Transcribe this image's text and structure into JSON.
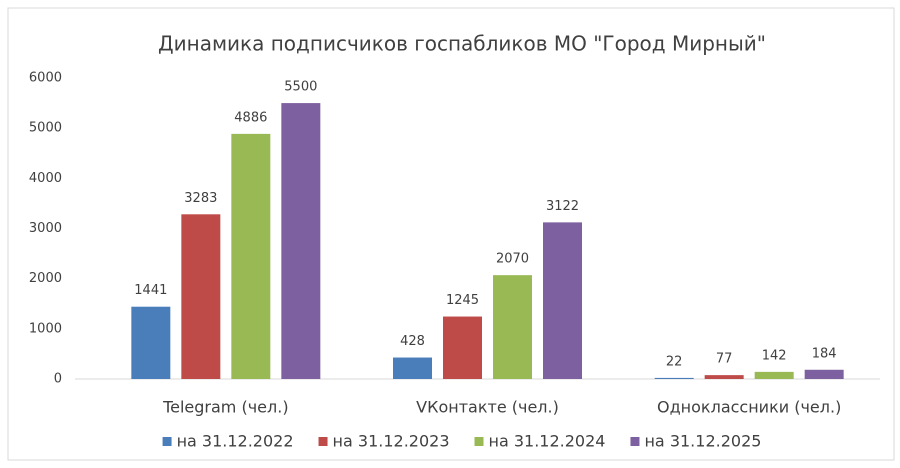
{
  "chart_data": {
    "type": "bar",
    "title": "Динамика подписчиков госпабликов МО \"Город Мирный\"",
    "categories": [
      "Telegram (чел.)",
      "VКонтакте (чел.)",
      "Одноклассники (чел.)"
    ],
    "series": [
      {
        "name": "на 31.12.2022",
        "color": "#4a7ebb",
        "values": [
          1441,
          428,
          22
        ]
      },
      {
        "name": "на 31.12.2023",
        "color": "#be4b48",
        "values": [
          3283,
          1245,
          77
        ]
      },
      {
        "name": "на 31.12.2024",
        "color": "#98b954",
        "values": [
          4886,
          2070,
          142
        ]
      },
      {
        "name": "на 31.12.2025",
        "color": "#7d60a0",
        "values": [
          5500,
          3122,
          184
        ]
      }
    ],
    "ylim": [
      0,
      6000
    ],
    "yticks": [
      0,
      1000,
      2000,
      3000,
      4000,
      5000,
      6000
    ],
    "grid": false,
    "legend": "bottom"
  }
}
